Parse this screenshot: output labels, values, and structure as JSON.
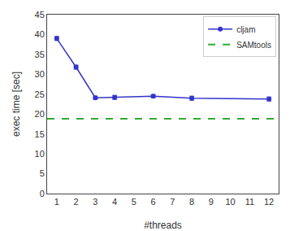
{
  "chart_data": {
    "type": "line",
    "xlabel": "#threads",
    "ylabel": "exec time [sec]",
    "x": [
      1,
      2,
      3,
      4,
      6,
      8,
      12
    ],
    "series": [
      {
        "name": "cljam",
        "color": "#3333cc",
        "values": [
          39.0,
          31.8,
          24.1,
          24.2,
          24.5,
          24.0,
          23.8
        ],
        "yerr": [
          0.5,
          0.5,
          0.4,
          0.5,
          0.4,
          0.5,
          0.5
        ],
        "marker": "circle",
        "line_style": "solid"
      },
      {
        "name": "SAMtools",
        "type": "hline",
        "color": "#33aa33",
        "y": 18.8,
        "line_style": "dashed"
      }
    ],
    "xlim": [
      0.5,
      12.5
    ],
    "ylim": [
      0,
      45
    ],
    "xticks": [
      1,
      2,
      3,
      4,
      5,
      6,
      7,
      8,
      9,
      10,
      11,
      12
    ],
    "yticks": [
      0,
      5,
      10,
      15,
      20,
      25,
      30,
      35,
      40,
      45
    ],
    "legend": "upper right",
    "grid": false
  }
}
